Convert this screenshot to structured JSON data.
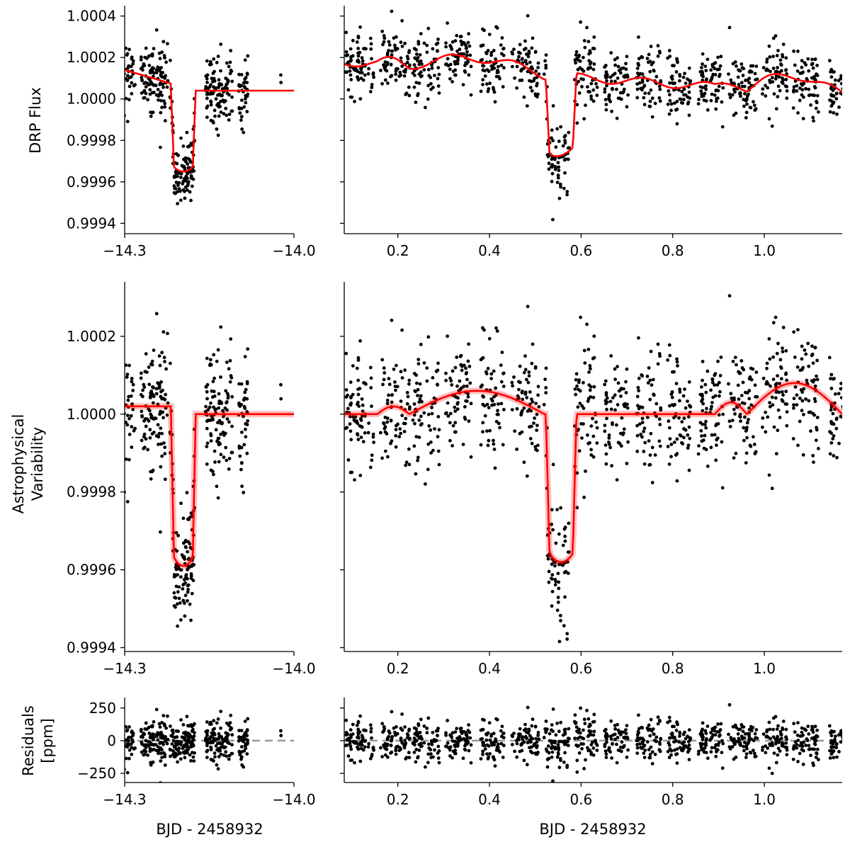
{
  "chart_data": {
    "type": "scatter",
    "description_free": true,
    "colors": {
      "points": "#000000",
      "model": "#ff0000",
      "zero_line": "#999999"
    },
    "x_label": "BJD - 2458932",
    "row_labels": {
      "top": [
        "DRP Flux"
      ],
      "middle": [
        "Astrophysical",
        "Variability"
      ],
      "bottom": [
        "Residuals",
        "[ppm]"
      ]
    },
    "x_axes": {
      "left": {
        "xlim": [
          -14.3,
          -14.0
        ],
        "ticks": [
          -14.3,
          -14.0
        ],
        "tick_labels": [
          "−14.3",
          "−14.0"
        ]
      },
      "right": {
        "xlim": [
          0.083,
          1.17
        ],
        "ticks": [
          0.2,
          0.4,
          0.6,
          0.8,
          1.0
        ],
        "tick_labels": [
          "0.2",
          "0.4",
          "0.6",
          "0.8",
          "1.0"
        ]
      }
    },
    "rows": [
      {
        "id": "drp",
        "ylim": [
          0.99935,
          1.00045
        ],
        "ticks": [
          0.9994,
          0.9996,
          0.9998,
          1.0,
          1.0002,
          1.0004
        ],
        "tick_labels": [
          "0.9994",
          "0.9996",
          "0.9998",
          "1.0000",
          "1.0002",
          "1.0004"
        ],
        "model_style": "line",
        "zero_line": false
      },
      {
        "id": "astro",
        "ylim": [
          0.99939,
          1.00034
        ],
        "ticks": [
          0.9994,
          0.9996,
          0.9998,
          1.0,
          1.0002
        ],
        "tick_labels": [
          "0.9994",
          "0.9996",
          "0.9998",
          "1.0000",
          "1.0002"
        ],
        "model_style": "band",
        "zero_line": false
      },
      {
        "id": "resid",
        "ylim": [
          -320,
          330
        ],
        "ticks": [
          -250,
          0,
          250
        ],
        "tick_labels": [
          "−250",
          "0",
          "250"
        ],
        "model_style": "none",
        "zero_line": true
      }
    ],
    "clusters": {
      "left": [
        {
          "x": -14.291,
          "w": 0.01,
          "n": 30
        },
        {
          "x": -14.247,
          "w": 0.024,
          "n": 110
        },
        {
          "x": -14.198,
          "w": 0.022,
          "n": 120
        },
        {
          "x": -14.133,
          "w": 0.024,
          "n": 110
        },
        {
          "x": -14.09,
          "w": 0.008,
          "n": 40
        },
        {
          "x": -14.025,
          "w": 0.004,
          "n": 2
        }
      ],
      "right": [
        {
          "x": 0.115,
          "w": 0.034,
          "n": 75
        },
        {
          "x": 0.194,
          "w": 0.032,
          "n": 70
        },
        {
          "x": 0.262,
          "w": 0.03,
          "n": 65
        },
        {
          "x": 0.332,
          "w": 0.028,
          "n": 65
        },
        {
          "x": 0.407,
          "w": 0.026,
          "n": 60
        },
        {
          "x": 0.478,
          "w": 0.03,
          "n": 65
        },
        {
          "x": 0.547,
          "w": 0.028,
          "n": 70
        },
        {
          "x": 0.61,
          "w": 0.026,
          "n": 60
        },
        {
          "x": 0.678,
          "w": 0.028,
          "n": 60
        },
        {
          "x": 0.748,
          "w": 0.028,
          "n": 60
        },
        {
          "x": 0.815,
          "w": 0.026,
          "n": 60
        },
        {
          "x": 0.884,
          "w": 0.028,
          "n": 65
        },
        {
          "x": 0.953,
          "w": 0.032,
          "n": 70
        },
        {
          "x": 1.022,
          "w": 0.028,
          "n": 60
        },
        {
          "x": 1.09,
          "w": 0.028,
          "n": 65
        },
        {
          "x": 1.158,
          "w": 0.016,
          "n": 40
        }
      ]
    },
    "transits": [
      {
        "panel": "left",
        "t_start": -14.218,
        "t_end": -14.174,
        "depth": 0.00039
      },
      {
        "panel": "right",
        "t_start": 0.523,
        "t_end": 0.59,
        "depth": 0.00038
      }
    ],
    "flares": [
      {
        "t_start": 0.155,
        "t_end": 0.225,
        "height": 2e-05
      },
      {
        "t_start": 0.225,
        "t_end": 0.52,
        "height": 6e-05
      },
      {
        "t_start": 0.892,
        "t_end": 0.962,
        "height": 3e-05
      },
      {
        "t_start": 0.962,
        "t_end": 1.17,
        "height": 8e-05
      }
    ],
    "scatter_sigma_ppm": 80
  }
}
